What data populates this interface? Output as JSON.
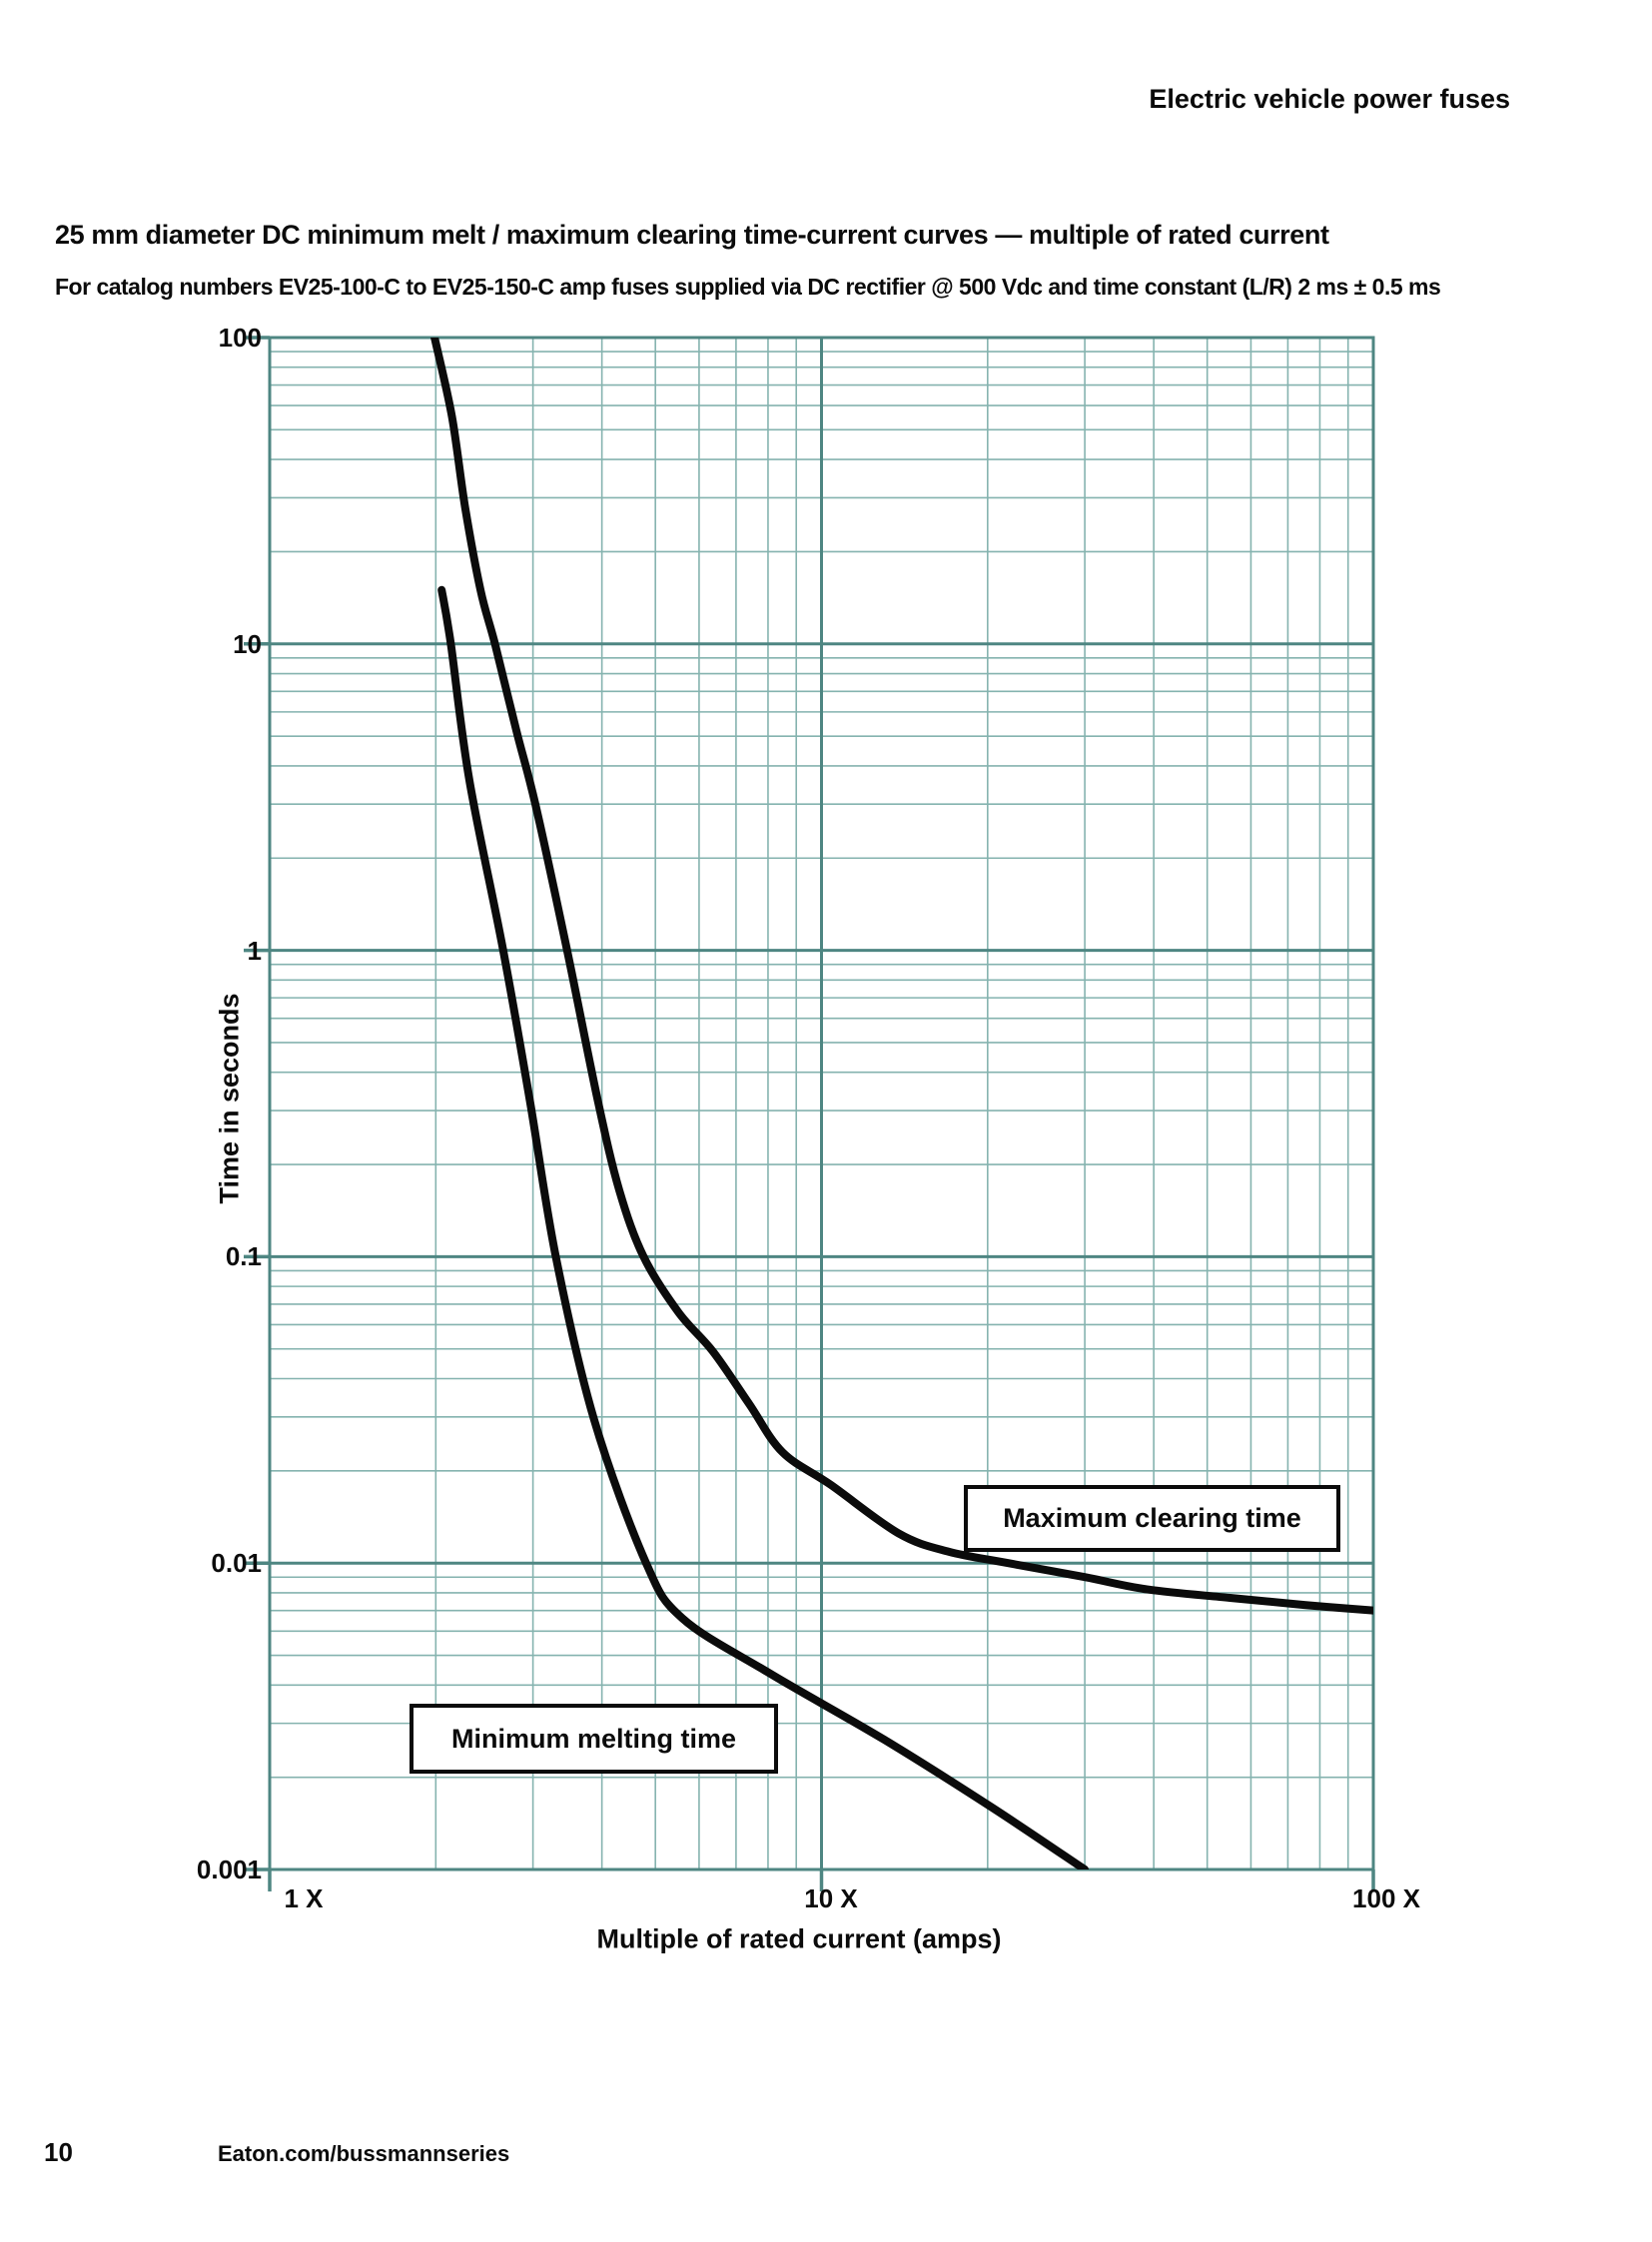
{
  "header": {
    "title": "Electric vehicle power fuses"
  },
  "chart_data": {
    "type": "line",
    "title": "25 mm diameter DC minimum melt / maximum clearing time-current curves — multiple of rated current",
    "subtitle": "For catalog numbers EV25-100-C to EV25-150-C amp fuses supplied via DC rectifier @ 500 Vdc and time constant (L/R) 2 ms ± 0.5 ms",
    "x_axis": {
      "label": "Multiple of rated current (amps)",
      "scale": "log",
      "min": 1,
      "max": 100,
      "ticks": [
        {
          "value": 1,
          "label": "1 X"
        },
        {
          "value": 10,
          "label": "10 X"
        },
        {
          "value": 100,
          "label": "100 X"
        }
      ]
    },
    "y_axis": {
      "label": "Time in seconds",
      "scale": "log",
      "min": 0.001,
      "max": 100,
      "ticks": [
        {
          "value": 100,
          "label": "100"
        },
        {
          "value": 10,
          "label": "10"
        },
        {
          "value": 1,
          "label": "1"
        },
        {
          "value": 0.1,
          "label": "0.1"
        },
        {
          "value": 0.01,
          "label": "0.01"
        },
        {
          "value": 0.001,
          "label": "0.001"
        }
      ]
    },
    "grid": {
      "on": true,
      "minor_color": "#85b3af",
      "major_color": "#4e8682"
    },
    "curve_color": "#0b0b0b",
    "legend_position": "on-chart-boxes",
    "series": [
      {
        "name": "Minimum melting time",
        "points": [
          [
            2.05,
            15
          ],
          [
            2.13,
            10
          ],
          [
            2.3,
            3.6
          ],
          [
            2.65,
            1.0
          ],
          [
            2.96,
            0.325
          ],
          [
            3.3,
            0.1
          ],
          [
            3.87,
            0.0295
          ],
          [
            4.81,
            0.01
          ],
          [
            5.6,
            0.0066
          ],
          [
            8.0,
            0.0044
          ],
          [
            13.0,
            0.00265
          ],
          [
            20.3,
            0.0016
          ],
          [
            30.0,
            0.001
          ]
        ]
      },
      {
        "name": "Maximum clearing time",
        "points": [
          [
            1.99,
            100
          ],
          [
            2.14,
            55
          ],
          [
            2.26,
            28
          ],
          [
            2.41,
            15
          ],
          [
            2.56,
            10
          ],
          [
            2.8,
            5.2
          ],
          [
            3.03,
            3.0
          ],
          [
            3.46,
            1.0
          ],
          [
            3.93,
            0.325
          ],
          [
            4.3,
            0.165
          ],
          [
            4.76,
            0.1
          ],
          [
            5.5,
            0.066
          ],
          [
            6.36,
            0.049
          ],
          [
            7.4,
            0.033
          ],
          [
            8.5,
            0.023
          ],
          [
            10.4,
            0.018
          ],
          [
            13.8,
            0.0125
          ],
          [
            17.0,
            0.0109
          ],
          [
            21.8,
            0.01
          ],
          [
            30.0,
            0.009
          ],
          [
            39.0,
            0.0082
          ],
          [
            55.0,
            0.0077
          ],
          [
            75.0,
            0.0073
          ],
          [
            100.0,
            0.007
          ]
        ]
      }
    ]
  },
  "footer": {
    "page_number": "10",
    "link": "Eaton.com/bussmannseries"
  }
}
